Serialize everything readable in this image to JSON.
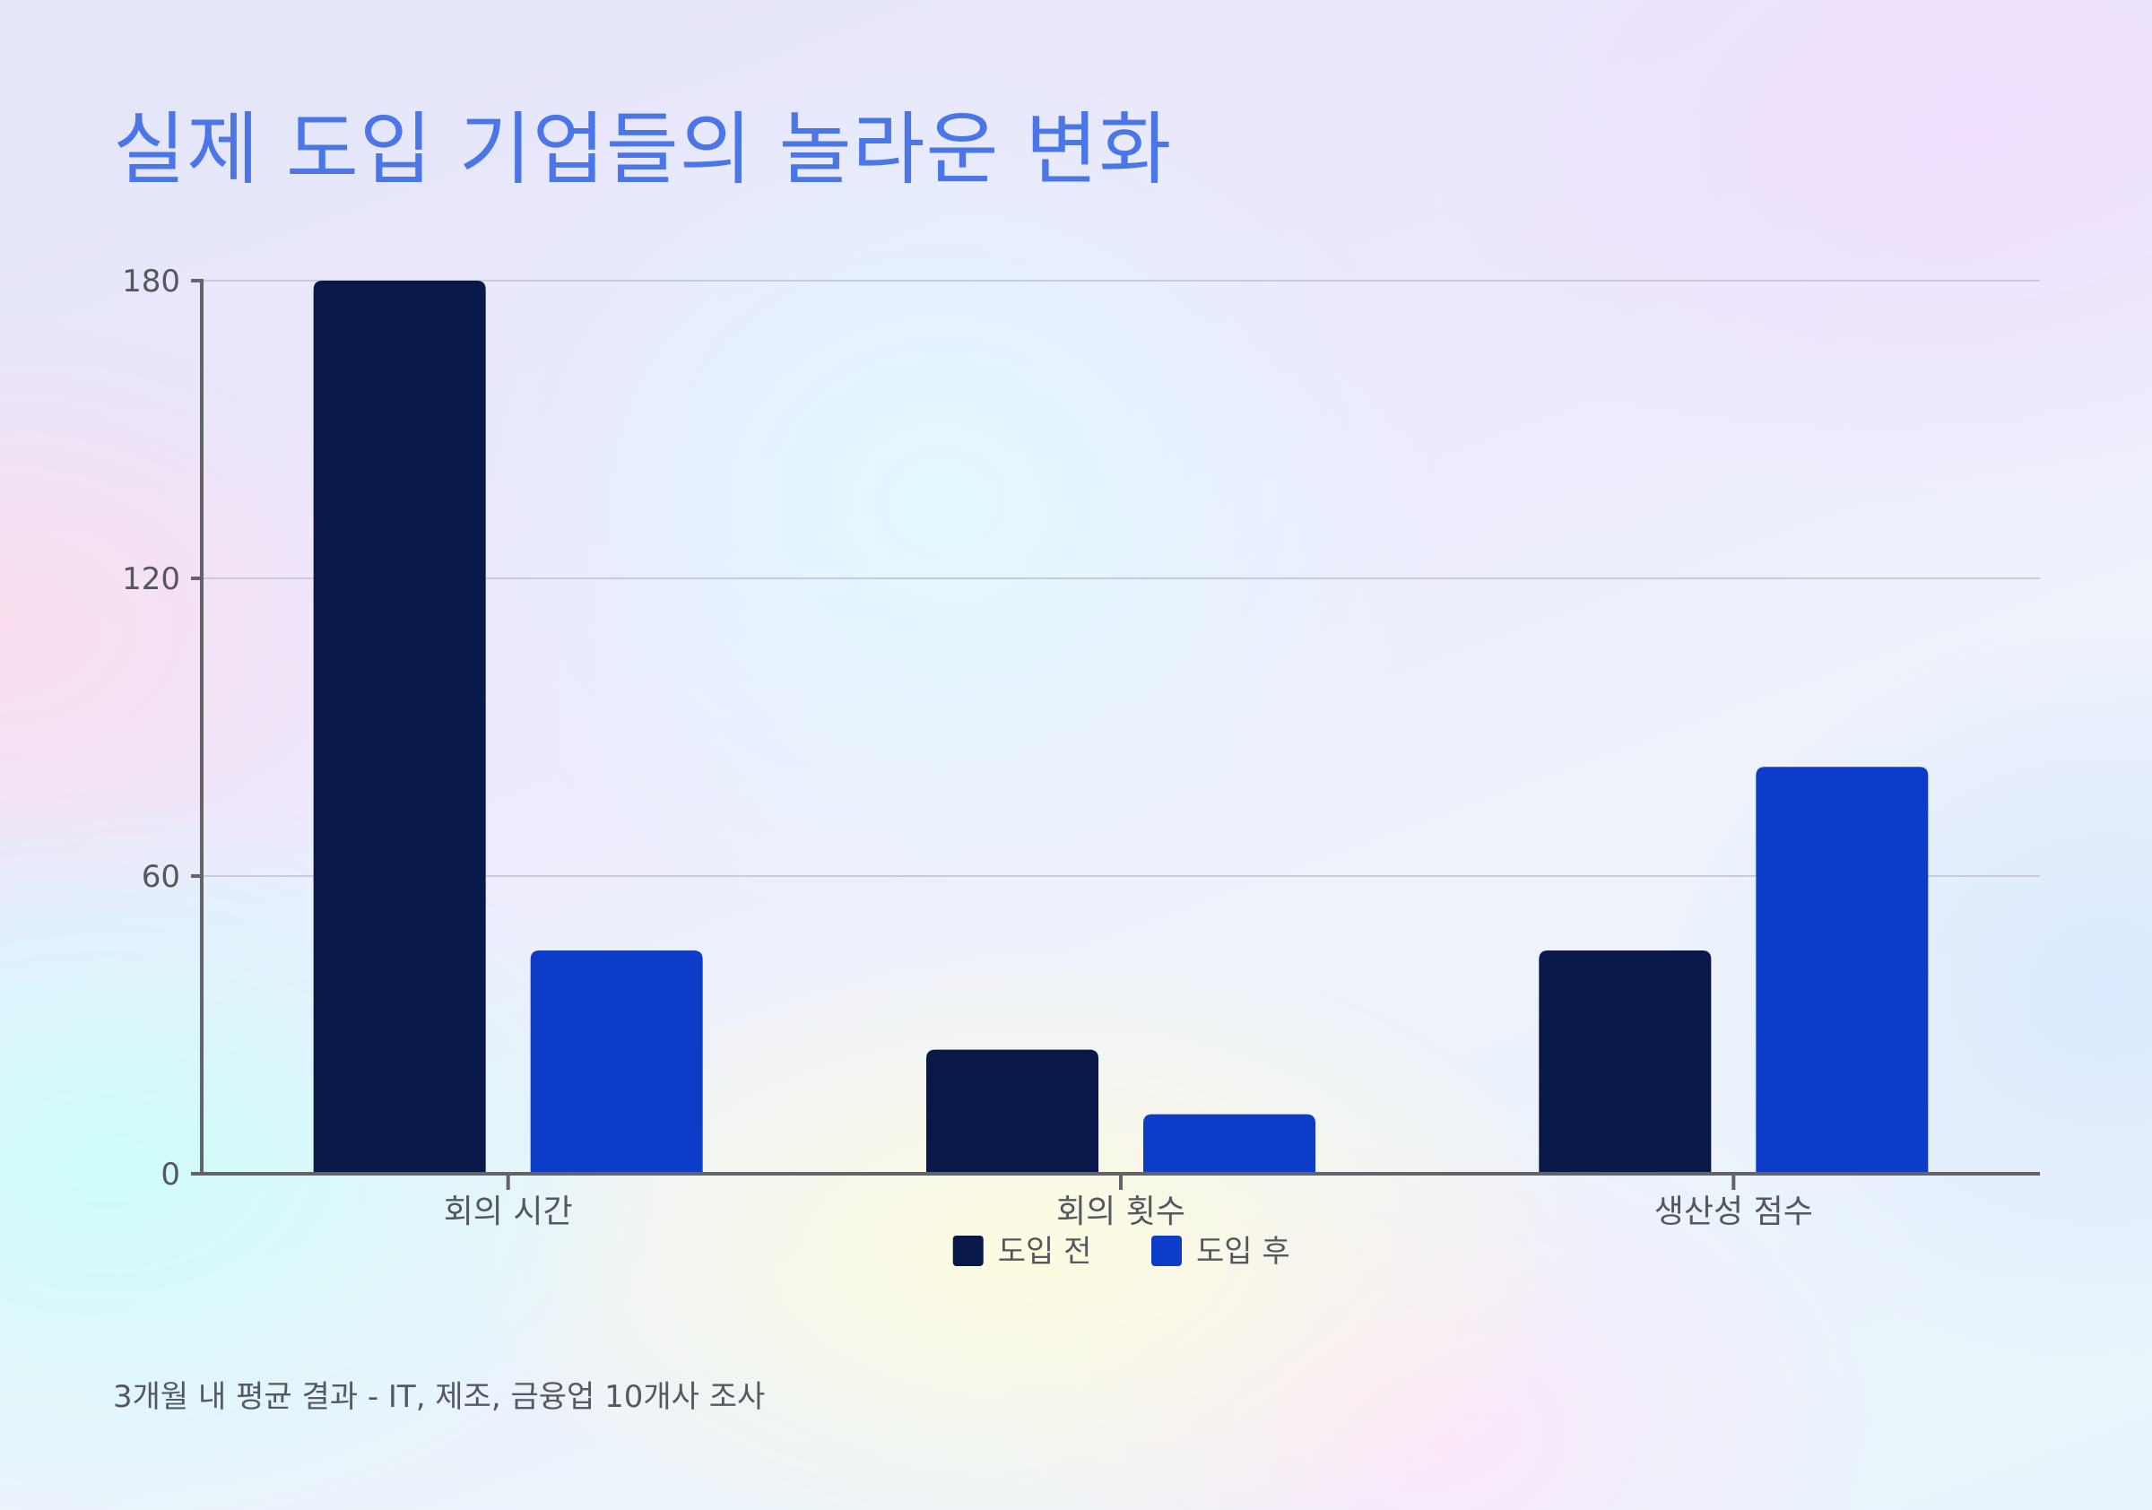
{
  "title": "실제 도입 기업들의 놀라운 변화",
  "footnote": "3개월 내 평균 결과 - IT, 제조, 금융업 10개사 조사",
  "chart_data": {
    "type": "bar",
    "categories": [
      "회의 시간",
      "회의 횟수",
      "생산성 점수"
    ],
    "series": [
      {
        "name": "도입 전",
        "values": [
          180,
          25,
          45
        ],
        "color": "#081849"
      },
      {
        "name": "도입 후",
        "values": [
          45,
          12,
          82
        ],
        "color": "#0c3cc8"
      }
    ],
    "y_ticks": [
      0,
      60,
      120,
      180
    ],
    "ylim": [
      0,
      180
    ],
    "xlabel": "",
    "ylabel": "",
    "grid": true,
    "legend_position": "bottom-center"
  }
}
